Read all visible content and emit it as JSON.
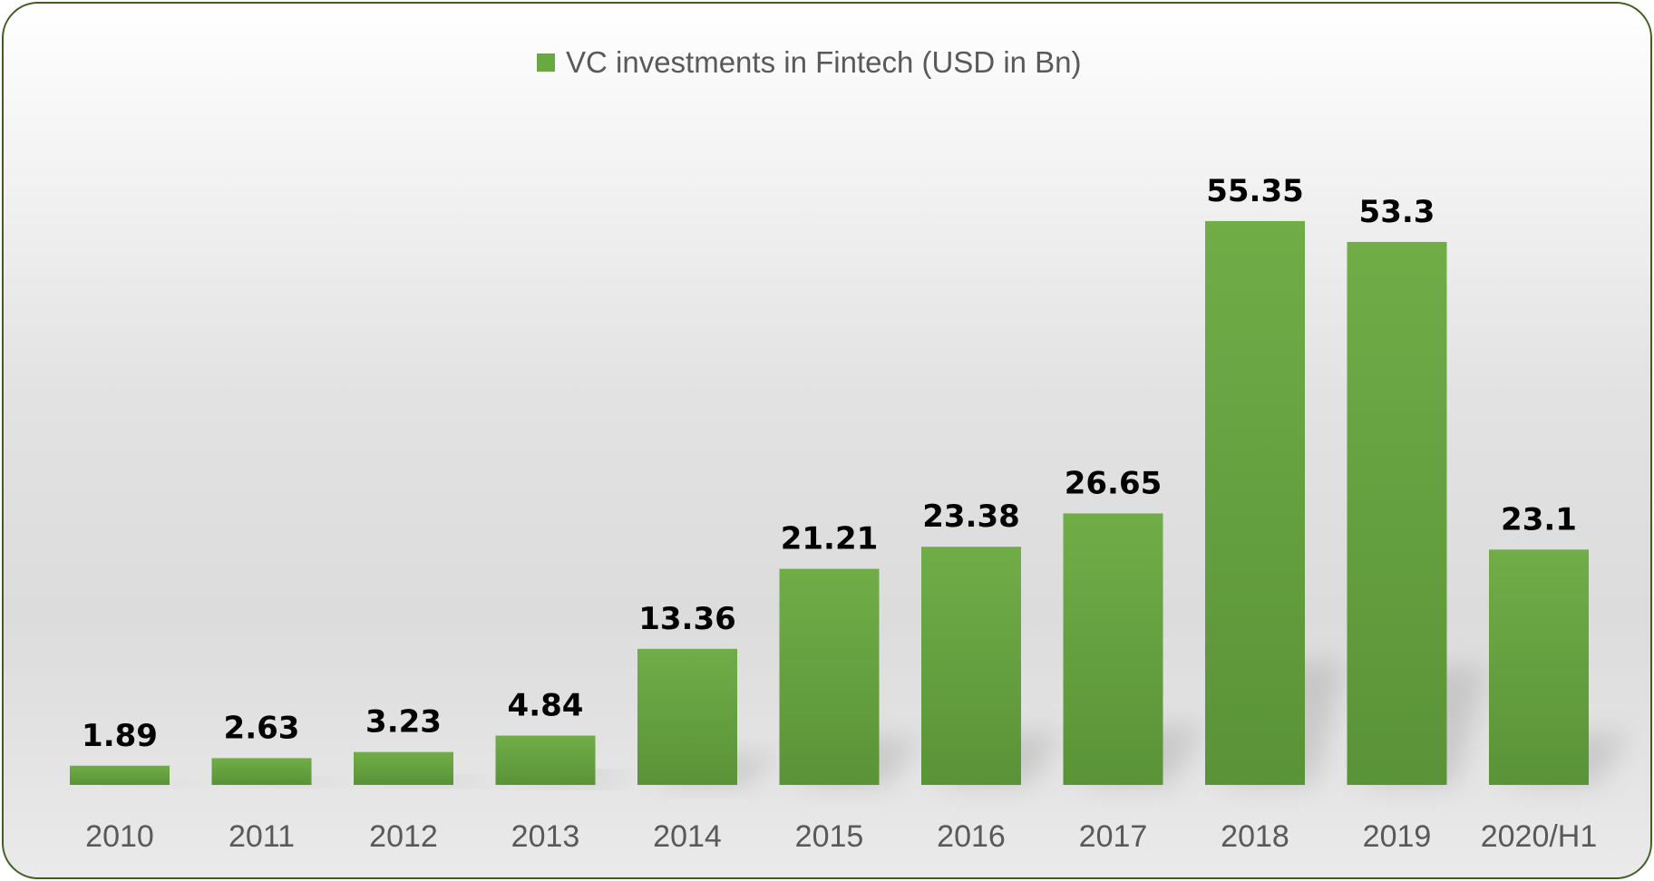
{
  "chart_data": {
    "type": "bar",
    "categories": [
      "2010",
      "2011",
      "2012",
      "2013",
      "2014",
      "2015",
      "2016",
      "2017",
      "2018",
      "2019",
      "2020/H1"
    ],
    "series": [
      {
        "name": "VC investments in Fintech (USD in Bn)",
        "values": [
          1.89,
          2.63,
          3.23,
          4.84,
          13.36,
          21.21,
          23.38,
          26.65,
          55.35,
          53.3,
          23.1
        ],
        "labels": [
          "1.89",
          "2.63",
          "3.23",
          "4.84",
          "13.36",
          "21.21",
          "23.38",
          "26.65",
          "55.35",
          "53.3",
          "23.1"
        ]
      }
    ],
    "title": "",
    "xlabel": "",
    "ylabel": "",
    "ylim": [
      0,
      60
    ],
    "grid": false,
    "legend_position": "top-center",
    "colors": {
      "bar_top": "#70ad47",
      "bar_bottom": "#5a9338",
      "legend_swatch": "#6aa842",
      "border": "#3f5e22"
    }
  }
}
